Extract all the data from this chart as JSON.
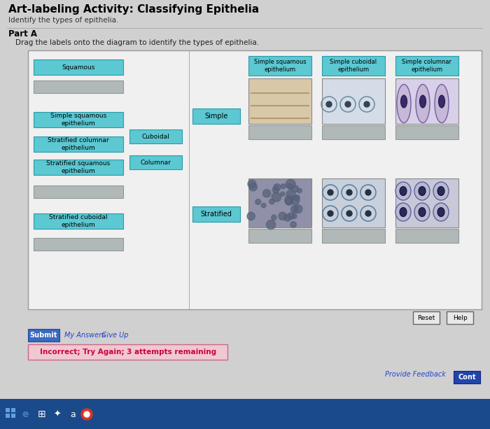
{
  "title": "Art-labeling Activity: Classifying Epithelia",
  "subtitle": "Identify the types of epithelia.",
  "part_label": "Part A",
  "instruction": "Drag the labels onto the diagram to identify the types of epithelia.",
  "bg_color": "#d0d0d0",
  "page_bg": "#c8c8c8",
  "panel_bg": "#e8e8e8",
  "cyan_color": "#5bc8d2",
  "cyan_dark": "#3ab0ba",
  "gray_box": "#b0b8b8",
  "light_gray_box": "#c8cece",
  "answer_bg": "#f0c8d0",
  "left_labels": [
    "Squamous",
    "",
    "Simple squamous\nepithelium",
    "Stratified columnar\nepithelium",
    "Stratified squamous\nepithelium",
    "",
    "Stratified cuboidal\nepithelium",
    ""
  ],
  "right_small_labels": [
    "Cuboidal",
    "Columnar"
  ],
  "row_labels": [
    "Simple",
    "Stratified"
  ],
  "col_header_labels": [
    "Simple squamous\nepithelium",
    "Simple cuboidal\nepithelium",
    "Simple columnar\nepithelium"
  ],
  "bottom_buttons": [
    "Reset",
    "Help"
  ],
  "submit_label": "Submit",
  "my_answers": "My Answers",
  "give_up": "Give Up",
  "feedback_text": "Incorrect; Try Again; 3 attempts remaining",
  "provide_feedback": "Provide Feedback",
  "cont_label": "Cont",
  "taskbar_color": "#1a4a8a",
  "submit_color": "#3a6abf"
}
